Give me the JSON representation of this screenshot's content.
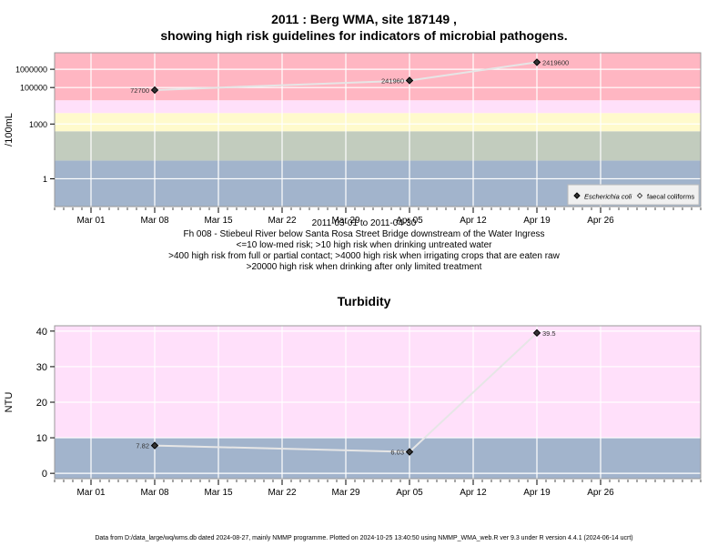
{
  "chart_data": [
    {
      "type": "line",
      "title_line1": "2011 : Berg WMA, site 187149 ,",
      "title_line2": "showing high risk guidelines for indicators of microbial pathogens.",
      "ylabel": "/100mL",
      "yscale": "log",
      "ylim": [
        0.03,
        8000000
      ],
      "xlim": [
        "2011-02-25",
        "2011-05-07"
      ],
      "x_ticks": [
        "Mar 01",
        "Mar 08",
        "Mar 15",
        "Mar 22",
        "Mar 29",
        "Apr 05",
        "Apr 12",
        "Apr 19",
        "Apr 26"
      ],
      "x_tick_dates": [
        "2011-03-01",
        "2011-03-08",
        "2011-03-15",
        "2011-03-22",
        "2011-03-29",
        "2011-04-05",
        "2011-04-12",
        "2011-04-19",
        "2011-04-26"
      ],
      "y_ticks": [
        "1",
        "1000",
        "100000",
        "1000000"
      ],
      "y_tick_values": [
        1,
        1000,
        100000,
        1000000
      ],
      "grid": true,
      "bands": [
        {
          "from": 0.03,
          "to": 10,
          "color": "#a2b4cc"
        },
        {
          "from": 10,
          "to": 400,
          "color": "#c2ccbe"
        },
        {
          "from": 400,
          "to": 4000,
          "color": "#fffacc"
        },
        {
          "from": 4000,
          "to": 20000,
          "color": "#ffe0fa"
        },
        {
          "from": 20000,
          "to": 8000000,
          "color": "#ffb6c2"
        }
      ],
      "series": [
        {
          "name": "Escherichia coli",
          "x": [
            "2011-03-08",
            "2011-04-05",
            "2011-04-19"
          ],
          "y": [
            72700,
            241960,
            2419600
          ],
          "labels": [
            "72700",
            "241960",
            "2419600"
          ]
        }
      ],
      "legend": {
        "position": "bottom-right",
        "items": [
          "Escherichia coli",
          "faecal coliforms"
        ]
      },
      "caption": [
        "2011-03-01 to 2011-04-30",
        "Fh 008 - Stiebeul River below Santa Rosa Street Bridge downstream of the Water Ingress",
        "<=10 low-med risk; >10 high risk when drinking untreated water",
        ">400 high risk from full or partial contact; >4000 high risk when irrigating crops that are eaten raw",
        ">20000 high risk when drinking after only limited treatment"
      ]
    },
    {
      "type": "line",
      "title": "Turbidity",
      "ylabel": "NTU",
      "ylim": [
        -1.5,
        41.5
      ],
      "xlim": [
        "2011-02-25",
        "2011-05-07"
      ],
      "x_ticks": [
        "Mar 01",
        "Mar 08",
        "Mar 15",
        "Mar 22",
        "Mar 29",
        "Apr 05",
        "Apr 12",
        "Apr 19",
        "Apr 26"
      ],
      "x_tick_dates": [
        "2011-03-01",
        "2011-03-08",
        "2011-03-15",
        "2011-03-22",
        "2011-03-29",
        "2011-04-05",
        "2011-04-12",
        "2011-04-19",
        "2011-04-26"
      ],
      "y_ticks": [
        "0",
        "10",
        "20",
        "30",
        "40"
      ],
      "y_tick_values": [
        0,
        10,
        20,
        30,
        40
      ],
      "grid": true,
      "bands": [
        {
          "from": -1.5,
          "to": 10,
          "color": "#a2b4cc"
        },
        {
          "from": 10,
          "to": 41.5,
          "color": "#ffe0fa"
        }
      ],
      "series": [
        {
          "name": "Turbidity",
          "x": [
            "2011-03-08",
            "2011-04-05",
            "2011-04-19"
          ],
          "y": [
            7.82,
            6.03,
            39.5
          ],
          "labels": [
            "7.82",
            "6.03",
            "39.5"
          ]
        }
      ]
    }
  ],
  "footer": "Data from D:/data_large/wq/wms.db dated 2024-08-27, mainly NMMP programme. Plotted on 2024-10-25 13:40:50 using NMMP_WMA_web.R ver 9.3 under R version 4.4.1 (2024-06-14 ucrt)"
}
